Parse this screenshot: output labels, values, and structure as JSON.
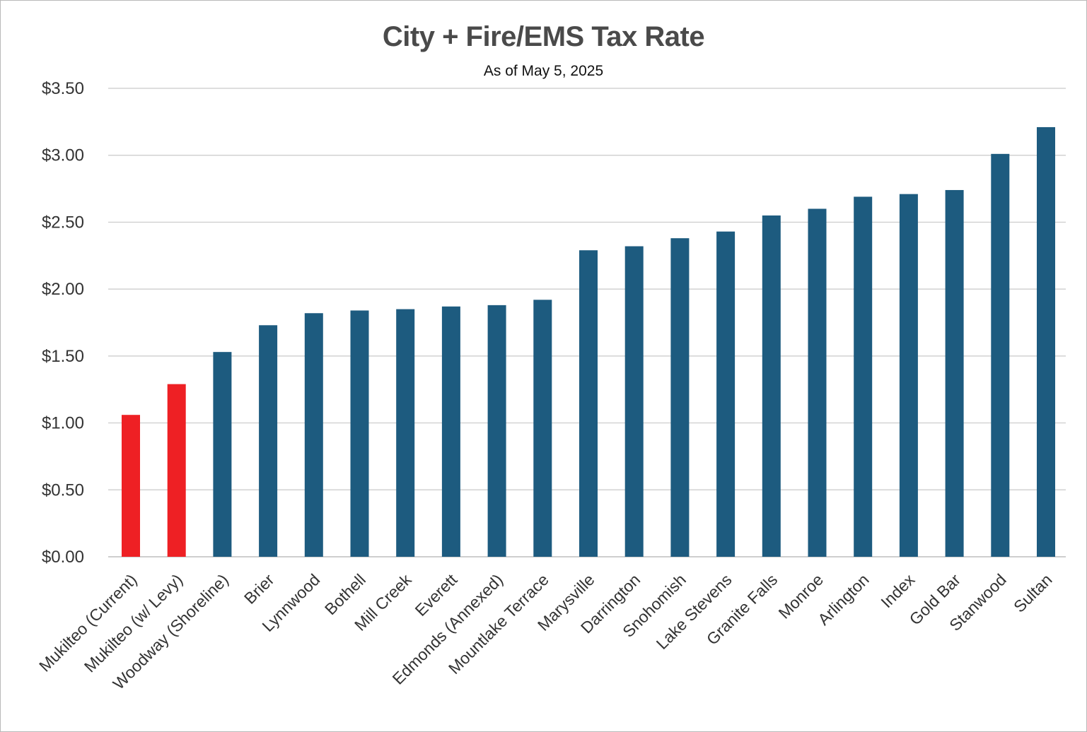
{
  "chart_data": {
    "type": "bar",
    "title": "City + Fire/EMS Tax Rate",
    "subtitle": "As of May 5, 2025",
    "xlabel": "",
    "ylabel": "",
    "ylim": [
      0,
      3.5
    ],
    "y_ticks": [
      "$0.00",
      "$0.50",
      "$1.00",
      "$1.50",
      "$2.00",
      "$2.50",
      "$3.00",
      "$3.50"
    ],
    "y_tick_values": [
      0,
      0.5,
      1.0,
      1.5,
      2.0,
      2.5,
      3.0,
      3.5
    ],
    "grid": true,
    "legend": "none",
    "categories": [
      "Mukilteo (Current)",
      "Mukilteo (w/ Levy)",
      "Woodway (Shoreline)",
      "Brier",
      "Lynnwood",
      "Bothell",
      "Mill Creek",
      "Everett",
      "Edmonds (Annexed)",
      "Mountlake Terrace",
      "Marysville",
      "Darrington",
      "Snohomish",
      "Lake Stevens",
      "Granite Falls",
      "Monroe",
      "Arlington",
      "Index",
      "Gold Bar",
      "Stanwood",
      "Sultan"
    ],
    "values": [
      1.06,
      1.29,
      1.53,
      1.73,
      1.82,
      1.84,
      1.85,
      1.87,
      1.88,
      1.92,
      2.29,
      2.32,
      2.38,
      2.43,
      2.55,
      2.6,
      2.69,
      2.71,
      2.74,
      3.01,
      3.21
    ],
    "highlight_count": 2,
    "colors": {
      "highlight": "#ee2024",
      "bar": "#1d5b7f",
      "grid": "#c9c9c9",
      "axis": "#bdbdbd"
    }
  }
}
